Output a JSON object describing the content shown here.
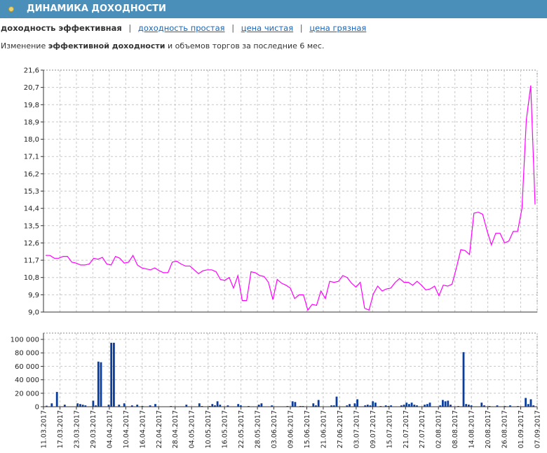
{
  "header": {
    "title": "ДИНАМИКА ДОХОДНОСТИ",
    "icon": "bullet-icon"
  },
  "tabs": [
    {
      "label": "доходность эффективная",
      "active": true
    },
    {
      "label": "доходность простая",
      "active": false
    },
    {
      "label": "цена чистая",
      "active": false
    },
    {
      "label": "цена грязная",
      "active": false
    }
  ],
  "tab_separator": "|",
  "description": {
    "prefix": "Изменение ",
    "bold": "эффективной доходности",
    "suffix": " и объемов торгов за последние 6 мес."
  },
  "colors": {
    "header_bg": "#4a8fba",
    "line": "#ff00ff",
    "bars": "#0a3d9c",
    "grid": "#c8c8c8",
    "link": "#1a66b8"
  },
  "chart_data": [
    {
      "type": "line",
      "series": [
        {
          "values": [
            11.95,
            11.95,
            11.8,
            11.8,
            11.9,
            11.9,
            11.6,
            11.55,
            11.45,
            11.45,
            11.5,
            11.8,
            11.75,
            11.85,
            11.5,
            11.45,
            11.9,
            11.8,
            11.55,
            11.6,
            11.95,
            11.45,
            11.3,
            11.25,
            11.2,
            11.3,
            11.15,
            11.05,
            11.05,
            11.6,
            11.65,
            11.5,
            11.4,
            11.4,
            11.2,
            11.0,
            11.15,
            11.2,
            11.2,
            11.1,
            10.7,
            10.65,
            10.8,
            10.25,
            10.9,
            9.6,
            9.6,
            11.1,
            11.05,
            10.9,
            10.85,
            10.55,
            9.65,
            10.7,
            10.5,
            10.4,
            10.25,
            9.7,
            9.9,
            9.9,
            9.1,
            9.4,
            9.35,
            10.1,
            9.7,
            10.6,
            10.55,
            10.6,
            10.9,
            10.8,
            10.5,
            10.3,
            10.55,
            9.2,
            9.1,
            9.95,
            10.35,
            10.1,
            10.2,
            10.25,
            10.55,
            10.75,
            10.55,
            10.55,
            10.4,
            10.6,
            10.4,
            10.15,
            10.2,
            10.35,
            9.85,
            10.4,
            10.35,
            10.45,
            11.3,
            12.25,
            12.2,
            12.0,
            14.15,
            14.2,
            14.1,
            13.25,
            12.5,
            13.1,
            13.1,
            12.6,
            12.7,
            13.2,
            13.2,
            14.4,
            19.0,
            20.8,
            14.6
          ]
        }
      ],
      "x_tick_labels": [
        "11.03.2017",
        "17.03.2017",
        "23.03.2017",
        "29.03.2017",
        "04.04.2017",
        "10.04.2017",
        "16.04.2017",
        "22.04.2017",
        "28.04.2017",
        "04.05.2017",
        "10.05.2017",
        "16.05.2017",
        "22.05.2017",
        "28.05.2017",
        "03.06.2017",
        "09.06.2017",
        "15.06.2017",
        "21.06.2017",
        "27.06.2017",
        "03.07.2017",
        "09.07.2017",
        "15.07.2017",
        "21.07.2017",
        "27.07.2017",
        "02.08.2017",
        "08.08.2017",
        "14.08.2017",
        "20.08.2017",
        "26.08.2017",
        "01.09.2017",
        "07.09.2017"
      ],
      "y_tick_labels": [
        "9,0",
        "9,9",
        "10,8",
        "11,7",
        "12,6",
        "13,5",
        "14,4",
        "15,3",
        "16,2",
        "17,1",
        "18,0",
        "18,9",
        "19,8",
        "20,7",
        "21,6"
      ],
      "ylim": [
        9.0,
        21.6
      ],
      "grid": true
    },
    {
      "type": "bar",
      "values": [
        1500,
        0,
        5000,
        0,
        22000,
        0,
        0,
        3000,
        0,
        0,
        0,
        0,
        5000,
        4000,
        3000,
        2000,
        0,
        0,
        9000,
        2000,
        67000,
        66000,
        0,
        0,
        3000,
        95000,
        95000,
        0,
        3000,
        0,
        5000,
        0,
        0,
        2000,
        0,
        3000,
        0,
        1000,
        0,
        0,
        2000,
        0,
        4000,
        0,
        0,
        0,
        0,
        0,
        1000,
        0,
        0,
        0,
        0,
        0,
        3000,
        0,
        0,
        0,
        0,
        5000,
        1000,
        0,
        0,
        1000,
        4000,
        2000,
        8000,
        3000,
        0,
        0,
        2000,
        0,
        0,
        0,
        4000,
        2000,
        0,
        0,
        1000,
        0,
        0,
        0,
        3000,
        5000,
        0,
        0,
        0,
        2000,
        0,
        0,
        0,
        0,
        0,
        1000,
        0,
        8000,
        7000,
        0,
        1000,
        1000,
        0,
        0,
        0,
        5000,
        2000,
        10000,
        0,
        0,
        0,
        0,
        2000,
        2000,
        15000,
        0,
        0,
        0,
        2000,
        4000,
        0,
        5000,
        11000,
        0,
        0,
        2000,
        3000,
        2000,
        8000,
        6000,
        0,
        1000,
        0,
        2000,
        1000,
        2000,
        0,
        0,
        0,
        2000,
        3000,
        6000,
        4000,
        6000,
        3000,
        2000,
        0,
        0,
        3000,
        4000,
        6000,
        0,
        0,
        0,
        2000,
        10000,
        8000,
        9000,
        3000,
        0,
        0,
        1000,
        0,
        81000,
        4000,
        3000,
        2000,
        0,
        0,
        0,
        6000,
        2000,
        0,
        1000,
        0,
        0,
        2000,
        0,
        0,
        1000,
        0,
        2000,
        0,
        0,
        1000,
        0,
        0,
        13000,
        4000,
        11000,
        2000
      ],
      "y_tick_labels": [
        "0",
        "20 000",
        "40 000",
        "60 000",
        "80 000",
        "100 000"
      ],
      "ylim": [
        0,
        100000
      ],
      "grid": true
    }
  ]
}
